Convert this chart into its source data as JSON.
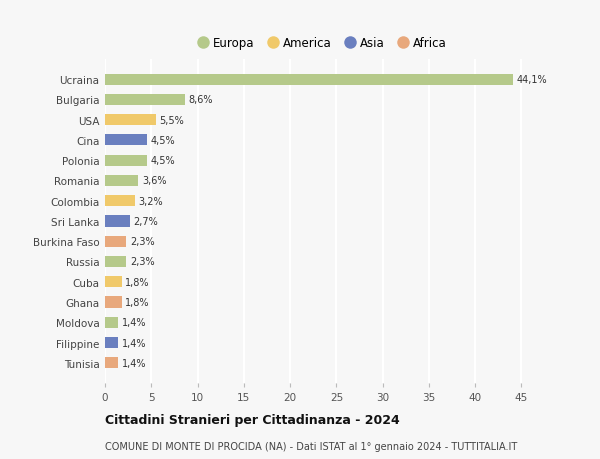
{
  "countries": [
    "Ucraina",
    "Bulgaria",
    "USA",
    "Cina",
    "Polonia",
    "Romania",
    "Colombia",
    "Sri Lanka",
    "Burkina Faso",
    "Russia",
    "Cuba",
    "Ghana",
    "Moldova",
    "Filippine",
    "Tunisia"
  ],
  "values": [
    44.1,
    8.6,
    5.5,
    4.5,
    4.5,
    3.6,
    3.2,
    2.7,
    2.3,
    2.3,
    1.8,
    1.8,
    1.4,
    1.4,
    1.4
  ],
  "labels": [
    "44,1%",
    "8,6%",
    "5,5%",
    "4,5%",
    "4,5%",
    "3,6%",
    "3,2%",
    "2,7%",
    "2,3%",
    "2,3%",
    "1,8%",
    "1,8%",
    "1,4%",
    "1,4%",
    "1,4%"
  ],
  "colors": [
    "#b5c98a",
    "#b5c98a",
    "#f0c96a",
    "#6a7fbf",
    "#b5c98a",
    "#b5c98a",
    "#f0c96a",
    "#6a7fbf",
    "#e8a87c",
    "#b5c98a",
    "#f0c96a",
    "#e8a87c",
    "#b5c98a",
    "#6a7fbf",
    "#e8a87c"
  ],
  "continent_labels": [
    "Europa",
    "America",
    "Asia",
    "Africa"
  ],
  "continent_colors": [
    "#b5c98a",
    "#f0c96a",
    "#6a7fbf",
    "#e8a87c"
  ],
  "title": "Cittadini Stranieri per Cittadinanza - 2024",
  "subtitle": "COMUNE DI MONTE DI PROCIDA (NA) - Dati ISTAT al 1° gennaio 2024 - TUTTITALIA.IT",
  "xlim": [
    0,
    47
  ],
  "xticks": [
    0,
    5,
    10,
    15,
    20,
    25,
    30,
    35,
    40,
    45
  ],
  "bg_color": "#f7f7f7",
  "grid_color": "#ffffff",
  "bar_height": 0.55,
  "fig_width": 6.0,
  "fig_height": 4.6,
  "dpi": 100
}
